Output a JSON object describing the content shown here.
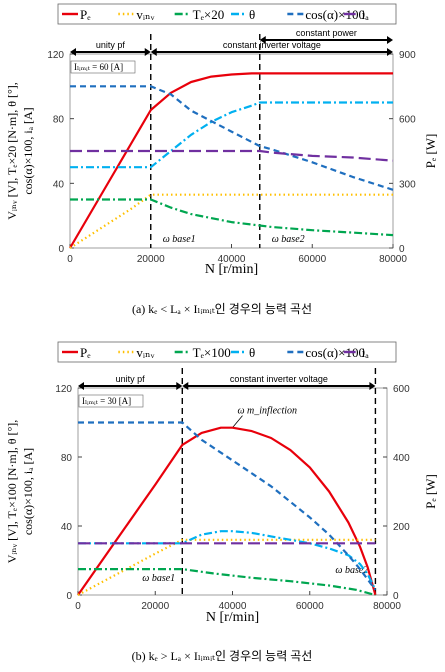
{
  "chart_data": [
    {
      "type": "line",
      "caption": "(a)  kₑ < Lₐ × Iₗᵢₘᵢₜ인 경우의 능력 곡선",
      "xlabel": "N [r/min]",
      "ylabel_left": "Vᵢₙᵥ [V], Tₑ×20 [N·m], θ [°],",
      "ylabel_left2": "cos(α)×100, iₐ [A]",
      "ylabel_right": "Pₑ [W]",
      "xlim": [
        0,
        80000
      ],
      "ylim_left": [
        0,
        120
      ],
      "ylim_right": [
        0,
        900
      ],
      "x_ticks": [
        0,
        20000,
        40000,
        60000,
        80000
      ],
      "y_ticks_left": [
        0,
        40,
        80,
        120
      ],
      "y_ticks_right": [
        0,
        300,
        600,
        900
      ],
      "legend": [
        "Pₑ",
        "vᵢₙᵥ",
        "Tₑ×20",
        "θ",
        "cos(α)×100",
        "iₐ"
      ],
      "limit_label": "Iₗᵢₘᵢₜ = 60 [A]",
      "regions": [
        {
          "label": "unity pf",
          "from": 0,
          "to": 20000
        },
        {
          "label": "constant inverter voltage",
          "from": 20000,
          "to": 80000
        },
        {
          "label": "constant power",
          "from": 47000,
          "to": 80000
        }
      ],
      "markers": [
        {
          "label": "ω base1",
          "x": 20000
        },
        {
          "label": "ω base2",
          "x": 47000
        }
      ],
      "series": [
        {
          "name": "Pₑ",
          "axis": "right",
          "color": "#e8000b",
          "dash": "solid",
          "x": [
            0,
            5000,
            10000,
            15000,
            20000,
            25000,
            30000,
            35000,
            40000,
            45000,
            50000,
            60000,
            70000,
            80000
          ],
          "y": [
            0,
            160,
            320,
            480,
            640,
            720,
            770,
            795,
            805,
            810,
            810,
            810,
            810,
            810
          ]
        },
        {
          "name": "vᵢₙᵥ",
          "axis": "left",
          "color": "#ffc000",
          "dash": "dot",
          "x": [
            0,
            5000,
            10000,
            15000,
            20000,
            30000,
            40000,
            50000,
            60000,
            70000,
            80000
          ],
          "y": [
            0,
            8,
            16,
            24,
            33,
            33,
            33,
            33,
            33,
            33,
            33
          ]
        },
        {
          "name": "Tₑ×20",
          "axis": "left",
          "color": "#00a650",
          "dash": "dashdot",
          "x": [
            0,
            10000,
            20000,
            25000,
            30000,
            40000,
            50000,
            60000,
            70000,
            80000
          ],
          "y": [
            30,
            30,
            30,
            25,
            21,
            16,
            13,
            11,
            9.5,
            8
          ]
        },
        {
          "name": "θ",
          "axis": "left",
          "color": "#00b0f0",
          "dash": "dashdot",
          "x": [
            0,
            10000,
            20000,
            25000,
            30000,
            35000,
            40000,
            45000,
            47000,
            50000,
            60000,
            70000,
            80000
          ],
          "y": [
            50,
            50,
            50,
            60,
            70,
            78,
            84,
            88,
            90,
            90,
            90,
            90,
            90
          ]
        },
        {
          "name": "cos(α)×100",
          "axis": "left",
          "color": "#1f6fbf",
          "dash": "dash",
          "x": [
            0,
            10000,
            20000,
            25000,
            30000,
            40000,
            47000,
            50000,
            60000,
            70000,
            80000
          ],
          "y": [
            100,
            100,
            100,
            95,
            85,
            72,
            63,
            61,
            53,
            44,
            36
          ]
        },
        {
          "name": "iₐ",
          "axis": "left",
          "color": "#7030a0",
          "dash": "longdash",
          "x": [
            0,
            10000,
            20000,
            30000,
            40000,
            47000,
            50000,
            60000,
            70000,
            80000
          ],
          "y": [
            60,
            60,
            60,
            60,
            60,
            60,
            59,
            57,
            56,
            54
          ]
        }
      ]
    },
    {
      "type": "line",
      "caption": "(b)  kₑ > Lₐ × Iₗᵢₘᵢₜ인 경우의 능력 곡선",
      "xlabel": "N [r/min]",
      "ylabel_left": "Vᵢₙᵥ [V], Tₑ×100 [N·m], θ [°],",
      "ylabel_left2": "cos(α)×100, iₐ [A]",
      "ylabel_right": "Pₑ [W]",
      "xlim": [
        0,
        80000
      ],
      "ylim_left": [
        0,
        120
      ],
      "ylim_right": [
        0,
        600
      ],
      "x_ticks": [
        0,
        20000,
        40000,
        60000,
        80000
      ],
      "y_ticks_left": [
        0,
        40,
        80,
        120
      ],
      "y_ticks_right": [
        0,
        200,
        400,
        600
      ],
      "legend": [
        "Pₑ",
        "vᵢₙᵥ",
        "Tₑ×100",
        "θ",
        "cos(α)×100",
        "iₐ"
      ],
      "limit_label": "Iₗᵢₘᵢₜ = 30 [A]",
      "regions": [
        {
          "label": "unity pf",
          "from": 0,
          "to": 27000
        },
        {
          "label": "constant inverter voltage",
          "from": 27000,
          "to": 77000
        }
      ],
      "markers": [
        {
          "label": "ω base1",
          "x": 27000
        },
        {
          "label": "ω base2",
          "x": 77000
        }
      ],
      "annotation": {
        "label": "ω m_inflection",
        "x": 40000
      },
      "series": [
        {
          "name": "Pₑ",
          "axis": "right",
          "color": "#e8000b",
          "dash": "solid",
          "x": [
            0,
            5000,
            10000,
            15000,
            20000,
            27000,
            32000,
            37000,
            40000,
            45000,
            50000,
            55000,
            60000,
            65000,
            70000,
            73000,
            75000,
            77000
          ],
          "y": [
            0,
            80,
            160,
            240,
            320,
            435,
            470,
            485,
            485,
            475,
            455,
            420,
            370,
            300,
            210,
            140,
            80,
            0
          ]
        },
        {
          "name": "vᵢₙᵥ",
          "axis": "left",
          "color": "#ffc000",
          "dash": "dot",
          "x": [
            0,
            5000,
            10000,
            15000,
            20000,
            27000,
            40000,
            60000,
            70000,
            77000
          ],
          "y": [
            0,
            6,
            12,
            18,
            24,
            32,
            32,
            32,
            32,
            32
          ]
        },
        {
          "name": "Tₑ×100",
          "axis": "left",
          "color": "#00a650",
          "dash": "dashdot",
          "x": [
            0,
            10000,
            20000,
            27000,
            35000,
            45000,
            55000,
            65000,
            72000,
            77000
          ],
          "y": [
            15,
            15,
            15,
            15,
            12.5,
            10,
            8,
            5.5,
            3,
            0
          ]
        },
        {
          "name": "θ",
          "axis": "left",
          "color": "#00b0f0",
          "dash": "dashdot",
          "x": [
            0,
            10000,
            20000,
            27000,
            32000,
            37000,
            40000,
            45000,
            50000,
            55000,
            60000,
            65000,
            70000,
            73000,
            75000,
            77000
          ],
          "y": [
            30,
            30,
            30,
            30,
            35,
            37,
            37,
            36,
            34,
            32,
            30,
            27,
            23,
            18,
            12,
            3
          ]
        },
        {
          "name": "cos(α)×100",
          "axis": "left",
          "color": "#1f6fbf",
          "dash": "dash",
          "x": [
            0,
            10000,
            20000,
            27000,
            32000,
            40000,
            50000,
            60000,
            65000,
            70000,
            73000,
            75000,
            77000
          ],
          "y": [
            100,
            100,
            100,
            100,
            90,
            78,
            63,
            45,
            35,
            23,
            15,
            9,
            3
          ]
        },
        {
          "name": "iₐ",
          "axis": "left",
          "color": "#7030a0",
          "dash": "longdash",
          "x": [
            0,
            10000,
            20000,
            27000,
            40000,
            60000,
            70000,
            77000
          ],
          "y": [
            30,
            30,
            30,
            30,
            30,
            30,
            30,
            30
          ]
        }
      ]
    }
  ]
}
